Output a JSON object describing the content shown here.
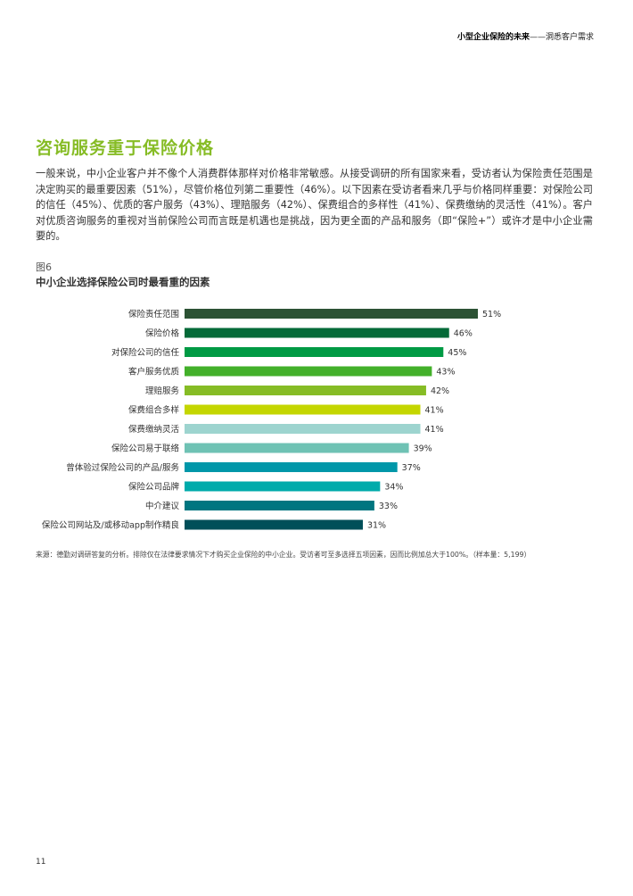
{
  "header": {
    "bold": "小型企业保险的未来",
    "rest": "——洞悉客户需求"
  },
  "section_title": "咨询服务重于保险价格",
  "intro": "一般来说，中小企业客户并不像个人消费群体那样对价格非常敏感。从接受调研的所有国家来看，受访者认为保险责任范围是决定购买的最重要因素（51%），尽管价格位列第二重要性（46%）。以下因素在受访者看来几乎与价格同样重要：对保险公司的信任（45%）、优质的客户服务（43%）、理赔服务（42%）、保费组合的多样性（41%）、保费缴纳的灵活性（41%）。客户对优质咨询服务的重视对当前保险公司而言既是机遇也是挑战，因为更全面的产品和服务（即“保险+”）或许才是中小企业需要的。",
  "figure": {
    "number": "图6",
    "title": "中小企业选择保险公司时最看重的因素"
  },
  "chart_data": {
    "type": "bar",
    "orientation": "horizontal",
    "categories": [
      "保险责任范围",
      "保险价格",
      "对保险公司的信任",
      "客户服务优质",
      "理赔服务",
      "保费组合多样",
      "保费缴纳灵活",
      "保险公司易于联络",
      "曾体验过保险公司的产品/服务",
      "保险公司品牌",
      "中介建议",
      "保险公司网站及/或移动app制作精良"
    ],
    "values": [
      51,
      46,
      45,
      43,
      42,
      41,
      41,
      39,
      37,
      34,
      33,
      31
    ],
    "value_labels": [
      "51%",
      "46%",
      "45%",
      "43%",
      "42%",
      "41%",
      "41%",
      "39%",
      "37%",
      "34%",
      "33%",
      "31%"
    ],
    "colors": [
      "#2c5234",
      "#046a38",
      "#009a44",
      "#43b02a",
      "#86bc25",
      "#c4d600",
      "#9dd4cf",
      "#6fc2b4",
      "#0097a9",
      "#00abab",
      "#007680",
      "#004f59"
    ],
    "xlim": [
      0,
      51
    ],
    "grid": false,
    "legend": "none"
  },
  "source": "来源：德勤对调研答复的分析。排除仅在法律要求情况下才购买企业保险的中小企业。受访者可至多选择五项因素，因而比例加总大于100%。（样本量：5,199）",
  "page_number": "11"
}
